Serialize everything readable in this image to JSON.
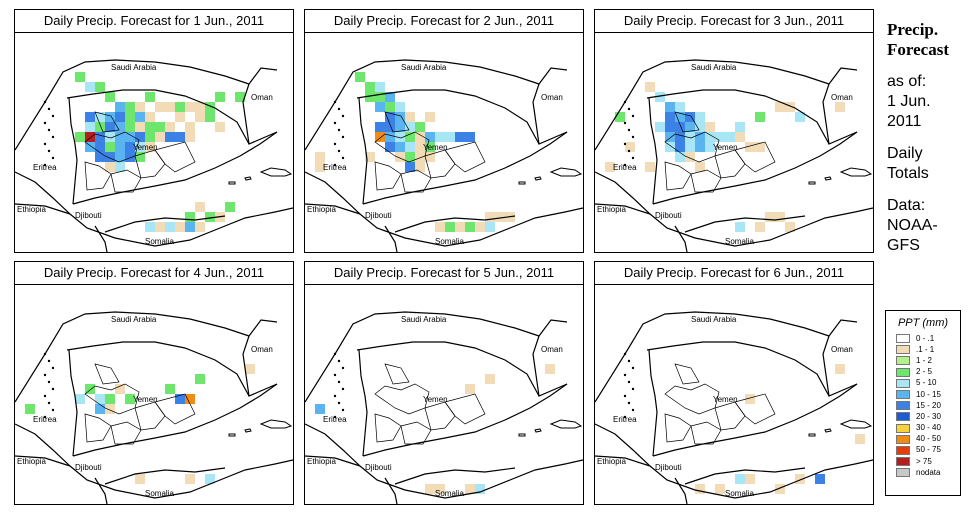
{
  "panels": [
    {
      "title": "Daily Precip. Forecast for  1 Jun., 2011",
      "cells": [
        [
          6,
          4,
          "g"
        ],
        [
          7,
          5,
          "lc"
        ],
        [
          8,
          5,
          "g"
        ],
        [
          9,
          6,
          "g"
        ],
        [
          10,
          7,
          "c"
        ],
        [
          11,
          7,
          "g"
        ],
        [
          12,
          8,
          "c"
        ],
        [
          13,
          8,
          "t"
        ],
        [
          7,
          8,
          "b"
        ],
        [
          8,
          8,
          "lc"
        ],
        [
          9,
          8,
          "c"
        ],
        [
          10,
          8,
          "b"
        ],
        [
          11,
          8,
          "g"
        ],
        [
          12,
          9,
          "lc"
        ],
        [
          7,
          9,
          "lc"
        ],
        [
          8,
          9,
          "g"
        ],
        [
          9,
          9,
          "b"
        ],
        [
          10,
          9,
          "c"
        ],
        [
          11,
          9,
          "g"
        ],
        [
          12,
          9,
          "t"
        ],
        [
          13,
          9,
          "g"
        ],
        [
          14,
          9,
          "g"
        ],
        [
          15,
          9,
          "t"
        ],
        [
          6,
          10,
          "g"
        ],
        [
          7,
          10,
          "r"
        ],
        [
          8,
          10,
          "b"
        ],
        [
          9,
          10,
          "lc"
        ],
        [
          10,
          10,
          "c"
        ],
        [
          11,
          10,
          "c"
        ],
        [
          12,
          10,
          "b"
        ],
        [
          13,
          10,
          "g"
        ],
        [
          14,
          10,
          "t"
        ],
        [
          15,
          10,
          "b"
        ],
        [
          16,
          10,
          "b"
        ],
        [
          17,
          10,
          "t"
        ],
        [
          7,
          11,
          "c"
        ],
        [
          8,
          11,
          "b"
        ],
        [
          9,
          11,
          "g"
        ],
        [
          10,
          11,
          "c"
        ],
        [
          11,
          11,
          "b"
        ],
        [
          12,
          11,
          "lc"
        ],
        [
          13,
          11,
          "t"
        ],
        [
          8,
          12,
          "b"
        ],
        [
          9,
          12,
          "b"
        ],
        [
          10,
          12,
          "c"
        ],
        [
          11,
          12,
          "b"
        ],
        [
          12,
          12,
          "g"
        ],
        [
          9,
          13,
          "t"
        ],
        [
          10,
          13,
          "lc"
        ],
        [
          12,
          7,
          "t"
        ],
        [
          14,
          7,
          "t"
        ],
        [
          15,
          7,
          "t"
        ],
        [
          16,
          7,
          "g"
        ],
        [
          17,
          7,
          "t"
        ],
        [
          18,
          7,
          "t"
        ],
        [
          19,
          7,
          "g"
        ],
        [
          13,
          6,
          "g"
        ],
        [
          16,
          8,
          "t"
        ],
        [
          17,
          9,
          "t"
        ],
        [
          18,
          8,
          "t"
        ],
        [
          19,
          8,
          "g"
        ],
        [
          20,
          6,
          "g"
        ],
        [
          22,
          6,
          "g"
        ],
        [
          20,
          9,
          "t"
        ],
        [
          14,
          19,
          "t"
        ],
        [
          15,
          19,
          "lc"
        ],
        [
          16,
          19,
          "t"
        ],
        [
          17,
          18,
          "g"
        ],
        [
          18,
          19,
          "t"
        ],
        [
          19,
          18,
          "g"
        ],
        [
          20,
          18,
          "t"
        ],
        [
          21,
          17,
          "g"
        ],
        [
          17,
          19,
          "c"
        ],
        [
          13,
          19,
          "lc"
        ],
        [
          18,
          17,
          "t"
        ]
      ]
    },
    {
      "title": "Daily Precip. Forecast for  2 Jun., 2011",
      "cells": [
        [
          5,
          4,
          "g"
        ],
        [
          6,
          5,
          "g"
        ],
        [
          7,
          5,
          "lc"
        ],
        [
          8,
          6,
          "c"
        ],
        [
          7,
          6,
          "g"
        ],
        [
          6,
          6,
          "g"
        ],
        [
          8,
          7,
          "g"
        ],
        [
          9,
          7,
          "lc"
        ],
        [
          7,
          7,
          "c"
        ],
        [
          8,
          8,
          "b"
        ],
        [
          9,
          8,
          "c"
        ],
        [
          10,
          8,
          "t"
        ],
        [
          7,
          9,
          "b"
        ],
        [
          8,
          9,
          "b"
        ],
        [
          9,
          9,
          "c"
        ],
        [
          10,
          9,
          "lc"
        ],
        [
          11,
          9,
          "g"
        ],
        [
          12,
          8,
          "t"
        ],
        [
          7,
          10,
          "o"
        ],
        [
          8,
          10,
          "c"
        ],
        [
          9,
          10,
          "lc"
        ],
        [
          10,
          10,
          "g"
        ],
        [
          11,
          10,
          "t"
        ],
        [
          12,
          10,
          "c"
        ],
        [
          13,
          10,
          "lc"
        ],
        [
          8,
          11,
          "b"
        ],
        [
          9,
          11,
          "c"
        ],
        [
          10,
          11,
          "lc"
        ],
        [
          11,
          11,
          "t"
        ],
        [
          12,
          11,
          "g"
        ],
        [
          9,
          12,
          "t"
        ],
        [
          10,
          12,
          "g"
        ],
        [
          11,
          12,
          "t"
        ],
        [
          15,
          10,
          "b"
        ],
        [
          16,
          10,
          "b"
        ],
        [
          14,
          10,
          "lc"
        ],
        [
          10,
          13,
          "b"
        ],
        [
          11,
          13,
          "t"
        ],
        [
          12,
          12,
          "t"
        ],
        [
          6,
          12,
          "t"
        ],
        [
          1,
          12,
          "t"
        ],
        [
          1,
          13,
          "t"
        ],
        [
          13,
          19,
          "t"
        ],
        [
          14,
          19,
          "g"
        ],
        [
          15,
          19,
          "t"
        ],
        [
          16,
          19,
          "g"
        ],
        [
          17,
          19,
          "t"
        ],
        [
          18,
          18,
          "t"
        ],
        [
          19,
          18,
          "t"
        ],
        [
          18,
          19,
          "lc"
        ],
        [
          20,
          18,
          "t"
        ]
      ]
    },
    {
      "title": "Daily Precip. Forecast for  3 Jun., 2011",
      "cells": [
        [
          5,
          5,
          "t"
        ],
        [
          6,
          6,
          "lc"
        ],
        [
          7,
          7,
          "c"
        ],
        [
          8,
          7,
          "lc"
        ],
        [
          9,
          8,
          "b"
        ],
        [
          10,
          8,
          "lc"
        ],
        [
          8,
          8,
          "c"
        ],
        [
          7,
          8,
          "b"
        ],
        [
          6,
          9,
          "lc"
        ],
        [
          7,
          9,
          "b"
        ],
        [
          8,
          9,
          "b"
        ],
        [
          9,
          9,
          "c"
        ],
        [
          10,
          9,
          "lc"
        ],
        [
          11,
          9,
          "t"
        ],
        [
          12,
          10,
          "lc"
        ],
        [
          7,
          10,
          "c"
        ],
        [
          8,
          10,
          "b"
        ],
        [
          9,
          10,
          "lc"
        ],
        [
          10,
          10,
          "c"
        ],
        [
          11,
          10,
          "lc"
        ],
        [
          13,
          10,
          "lc"
        ],
        [
          14,
          10,
          "t"
        ],
        [
          7,
          11,
          "lc"
        ],
        [
          8,
          11,
          "b"
        ],
        [
          9,
          11,
          "lc"
        ],
        [
          10,
          11,
          "c"
        ],
        [
          11,
          11,
          "lc"
        ],
        [
          9,
          12,
          "t"
        ],
        [
          8,
          12,
          "lc"
        ],
        [
          14,
          9,
          "lc"
        ],
        [
          16,
          8,
          "g"
        ],
        [
          18,
          7,
          "t"
        ],
        [
          19,
          7,
          "t"
        ],
        [
          20,
          8,
          "lc"
        ],
        [
          15,
          11,
          "t"
        ],
        [
          16,
          11,
          "t"
        ],
        [
          5,
          13,
          "t"
        ],
        [
          10,
          13,
          "t"
        ],
        [
          2,
          8,
          "g"
        ],
        [
          24,
          7,
          "t"
        ],
        [
          3,
          11,
          "t"
        ],
        [
          1,
          13,
          "t"
        ],
        [
          16,
          19,
          "t"
        ],
        [
          17,
          18,
          "t"
        ],
        [
          18,
          18,
          "t"
        ],
        [
          19,
          19,
          "t"
        ],
        [
          14,
          19,
          "lc"
        ]
      ]
    },
    {
      "title": "Daily Precip. Forecast for  4 Jun., 2011",
      "cells": [
        [
          7,
          10,
          "g"
        ],
        [
          8,
          11,
          "lc"
        ],
        [
          9,
          11,
          "g"
        ],
        [
          10,
          10,
          "t"
        ],
        [
          8,
          12,
          "c"
        ],
        [
          9,
          12,
          "t"
        ],
        [
          11,
          11,
          "g"
        ],
        [
          16,
          11,
          "b"
        ],
        [
          17,
          11,
          "o"
        ],
        [
          15,
          10,
          "g"
        ],
        [
          18,
          9,
          "g"
        ],
        [
          6,
          11,
          "lc"
        ],
        [
          1,
          12,
          "g"
        ],
        [
          23,
          8,
          "t"
        ],
        [
          19,
          19,
          "lc"
        ],
        [
          12,
          19,
          "t"
        ],
        [
          17,
          19,
          "t"
        ]
      ]
    },
    {
      "title": "Daily Precip. Forecast for  5 Jun., 2011",
      "cells": [
        [
          1,
          12,
          "c"
        ],
        [
          24,
          8,
          "t"
        ],
        [
          16,
          10,
          "t"
        ],
        [
          18,
          9,
          "t"
        ],
        [
          12,
          20,
          "t"
        ],
        [
          13,
          20,
          "t"
        ],
        [
          16,
          20,
          "t"
        ],
        [
          17,
          20,
          "lc"
        ]
      ]
    },
    {
      "title": "Daily Precip. Forecast for  6 Jun., 2011",
      "cells": [
        [
          24,
          8,
          "t"
        ],
        [
          22,
          19,
          "b"
        ],
        [
          20,
          19,
          "t"
        ],
        [
          14,
          19,
          "lc"
        ],
        [
          15,
          19,
          "t"
        ],
        [
          12,
          20,
          "t"
        ],
        [
          15,
          11,
          "t"
        ],
        [
          26,
          15,
          "t"
        ],
        [
          10,
          20,
          "t"
        ],
        [
          18,
          20,
          "t"
        ]
      ]
    }
  ],
  "map_labels": {
    "saudi": "Saudi Arabia",
    "oman": "Oman",
    "yemen": "Yemen",
    "eritrea": "Eritrea",
    "ethiopia": "Ethiopia",
    "djibouti": "Djibouti",
    "somalia": "Somalia"
  },
  "side": {
    "title_line1": "Precip.",
    "title_line2": "Forecast",
    "asof_line1": "as of:",
    "asof_line2": "1 Jun.",
    "asof_line3": "2011",
    "totals_line1": "Daily",
    "totals_line2": "Totals",
    "data_line1": "Data:",
    "data_line2": "NOAA-",
    "data_line3": "GFS"
  },
  "legend": {
    "title": "PPT (mm)",
    "items": [
      {
        "label": "0 - .1",
        "color": "#ffffff"
      },
      {
        "label": ".1 - 1",
        "color": "#f1dcb7"
      },
      {
        "label": "1 - 2",
        "color": "#b4f08c"
      },
      {
        "label": "2 - 5",
        "color": "#6ee66e"
      },
      {
        "label": "5 - 10",
        "color": "#a8e6f5"
      },
      {
        "label": "10 - 15",
        "color": "#5ab4f0"
      },
      {
        "label": "15 - 20",
        "color": "#3c82e6"
      },
      {
        "label": "20 - 30",
        "color": "#1e5ad2"
      },
      {
        "label": "30 - 40",
        "color": "#fad23c"
      },
      {
        "label": "40 - 50",
        "color": "#f08c14"
      },
      {
        "label": "50 - 75",
        "color": "#e63c0a"
      },
      {
        "label": "> 75",
        "color": "#b41e1e"
      },
      {
        "label": "nodata",
        "color": "#c8c8c8"
      }
    ]
  },
  "cell_colors": {
    "t": "#f1dcb7",
    "g": "#6ee66e",
    "lc": "#a8e6f5",
    "c": "#5ab4f0",
    "b": "#3c82e6",
    "o": "#f08c14",
    "r": "#b41e1e"
  }
}
